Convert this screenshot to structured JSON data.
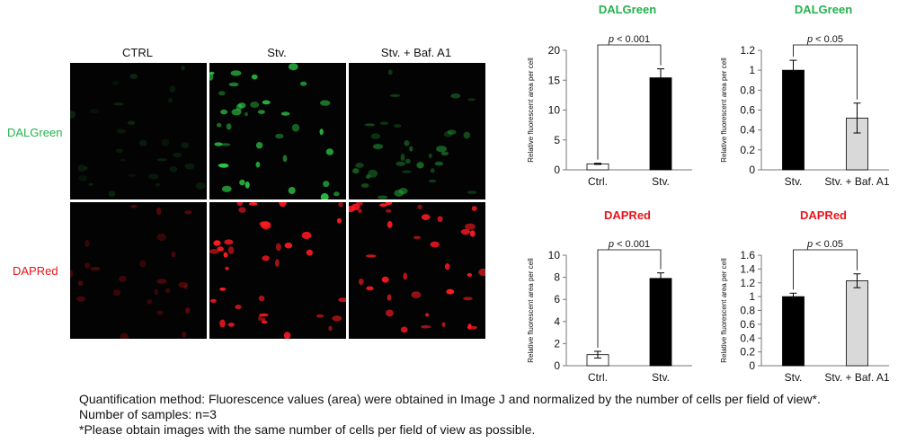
{
  "microscopy": {
    "columns": [
      "CTRL",
      "Stv.",
      "Stv. + Baf. A1"
    ],
    "rows": [
      {
        "label": "DALGreen",
        "color": "#22b24c"
      },
      {
        "label": "DAPRed",
        "color": "#e8141b"
      }
    ]
  },
  "chart_data": [
    {
      "type": "bar",
      "title": "DALGreen",
      "title_color": "#22b24c",
      "ylabel": "Relative fluorescent area per cell",
      "categories": [
        "Ctrl.",
        "Stv."
      ],
      "values": [
        1.0,
        15.4
      ],
      "errors": [
        0.1,
        1.5
      ],
      "bar_fills": [
        "#ffffff",
        "#000000"
      ],
      "ylim": [
        0,
        20
      ],
      "yticks": [
        "0",
        "5",
        "10",
        "15",
        "20"
      ],
      "yticks_values": [
        0,
        5,
        10,
        15,
        20
      ],
      "significance": {
        "text": "p < 0.001",
        "p_prefix": "p",
        "rest": " < 0.001"
      }
    },
    {
      "type": "bar",
      "title": "DALGreen",
      "title_color": "#22b24c",
      "ylabel": "Relative fluorescent area per cell",
      "categories": [
        "Stv.",
        "Stv. + Baf. A1"
      ],
      "values": [
        1.0,
        0.52
      ],
      "errors": [
        0.1,
        0.15
      ],
      "bar_fills": [
        "#000000",
        "#d9d9d9"
      ],
      "ylim": [
        0,
        1.2
      ],
      "yticks": [
        "0",
        "0.2",
        "0.4",
        "0.6",
        "0.8",
        "1",
        "1.2"
      ],
      "yticks_values": [
        0,
        0.2,
        0.4,
        0.6,
        0.8,
        1,
        1.2
      ],
      "significance": {
        "text": "p < 0.05",
        "p_prefix": "p",
        "rest": " < 0.05"
      }
    },
    {
      "type": "bar",
      "title": "DAPRed",
      "title_color": "#e8141b",
      "ylabel": "Relative fluorescent area per cell",
      "categories": [
        "Ctrl.",
        "Stv."
      ],
      "values": [
        1.0,
        7.9
      ],
      "errors": [
        0.3,
        0.5
      ],
      "bar_fills": [
        "#ffffff",
        "#000000"
      ],
      "ylim": [
        0,
        10
      ],
      "yticks": [
        "0",
        "2",
        "4",
        "6",
        "8",
        "10"
      ],
      "yticks_values": [
        0,
        2,
        4,
        6,
        8,
        10
      ],
      "significance": {
        "text": "p < 0.001",
        "p_prefix": "p",
        "rest": " < 0.001"
      }
    },
    {
      "type": "bar",
      "title": "DAPRed",
      "title_color": "#e8141b",
      "ylabel": "Relative fluorescent area per cell",
      "categories": [
        "Stv.",
        "Stv. + Baf. A1"
      ],
      "values": [
        1.0,
        1.23
      ],
      "errors": [
        0.05,
        0.1
      ],
      "bar_fills": [
        "#000000",
        "#d9d9d9"
      ],
      "ylim": [
        0,
        1.6
      ],
      "yticks": [
        "0",
        "0.2",
        "0.4",
        "0.6",
        "0.8",
        "1",
        "1.2",
        "1.4",
        "1.6"
      ],
      "yticks_values": [
        0,
        0.2,
        0.4,
        0.6,
        0.8,
        1,
        1.2,
        1.4,
        1.6
      ],
      "significance": {
        "text": "p < 0.05",
        "p_prefix": "p",
        "rest": " < 0.05"
      }
    }
  ],
  "footer": {
    "line1": "Quantification method: Fluorescence values (area) were obtained in Image J and normalized by the number of cells per field of view*.",
    "line2": "Number of samples: n=3",
    "line3": "*Please obtain images with the same number of cells per field of view as possible."
  }
}
